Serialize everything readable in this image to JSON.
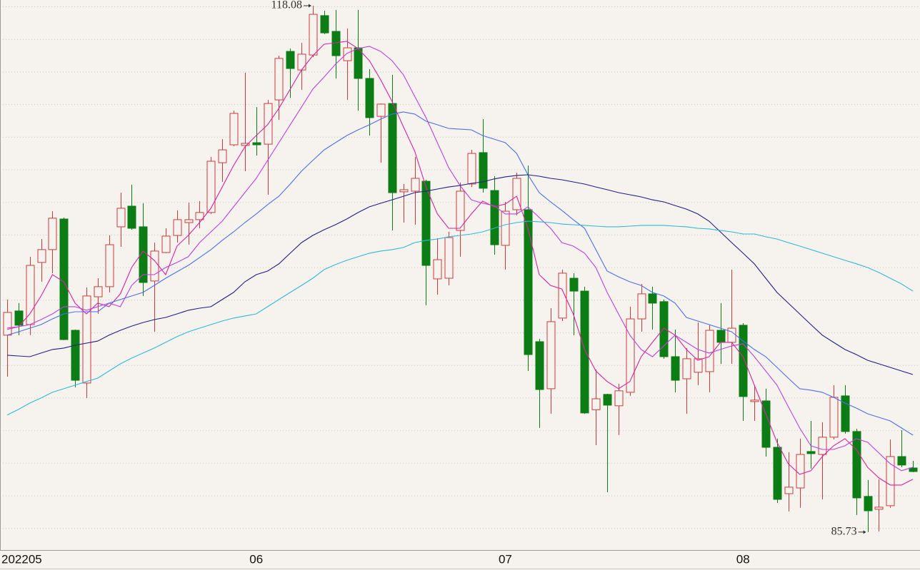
{
  "chart_data": {
    "type": "candlestick",
    "categories": [
      "202205",
      null,
      null,
      null,
      null,
      null,
      null,
      null,
      null,
      null,
      null,
      null,
      null,
      null,
      null,
      null,
      null,
      null,
      null,
      null,
      null,
      null,
      "06",
      null,
      null,
      null,
      null,
      null,
      null,
      null,
      null,
      null,
      null,
      null,
      null,
      null,
      null,
      null,
      null,
      null,
      null,
      null,
      null,
      null,
      "07",
      null,
      null,
      null,
      null,
      null,
      null,
      null,
      null,
      null,
      null,
      null,
      null,
      null,
      null,
      null,
      null,
      null,
      null,
      null,
      null,
      "08",
      null,
      null,
      null,
      null,
      null,
      null,
      null,
      null,
      null,
      null,
      null,
      null,
      null,
      null,
      null
    ],
    "open": [
      97.83,
      99.32,
      98.48,
      102.3,
      103.09,
      104.97,
      98.13,
      94.89,
      100.19,
      100.81,
      104.49,
      105.76,
      104.49,
      101.16,
      102.91,
      103.96,
      104.75,
      104.93,
      105.37,
      108.43,
      109.53,
      109.49,
      109.66,
      109.57,
      112.29,
      115.27,
      114.13,
      115.05,
      117.47,
      116.5,
      114.7,
      115.49,
      113.61,
      111.28,
      112.07,
      106.64,
      106.68,
      107.29,
      101.29,
      101.33,
      104.27,
      107.12,
      109.05,
      106.72,
      103.35,
      105.54,
      105.54,
      97.43,
      94.54,
      98.88,
      101.33,
      100.54,
      93.25,
      94.19,
      93.49,
      94.32,
      98.83,
      100.37,
      99.89,
      96.51,
      95.15,
      95.55,
      95.59,
      98.13,
      97.39,
      98.44,
      93.75,
      93.79,
      90.94,
      88.09,
      88.44,
      90.68,
      90.5,
      91.56,
      94.1,
      91.91,
      87.92,
      87.13,
      87.35,
      90.37,
      89.67
    ],
    "high": [
      100.02,
      99.8,
      102.65,
      103.74,
      105.45,
      105.06,
      98.18,
      100.76,
      101.33,
      103.96,
      106.59,
      107.08,
      105.94,
      103.52,
      104.4,
      105.5,
      105.98,
      106.07,
      108.79,
      109.88,
      111.63,
      113.96,
      111.85,
      112.29,
      115.01,
      115.45,
      115.8,
      118.08,
      117.77,
      117.82,
      116.68,
      117.82,
      114.18,
      112.07,
      113.83,
      107.12,
      108.79,
      107.38,
      103.79,
      104.18,
      107.21,
      109.22,
      111.11,
      107.6,
      106.02,
      107.82,
      108.26,
      97.61,
      99.49,
      101.86,
      101.64,
      100.81,
      95.72,
      94.23,
      94.84,
      99.58,
      100.98,
      100.81,
      100.02,
      98.18,
      97.04,
      98.61,
      98.48,
      99.8,
      101.86,
      98.57,
      94.76,
      94.54,
      91.47,
      90.64,
      91.47,
      92.56,
      92.48,
      94.76,
      94.76,
      92.08,
      88.93,
      88.97,
      91.42,
      92.0,
      90.11
    ],
    "low": [
      95.28,
      97.83,
      97.83,
      101.11,
      101.64,
      97.52,
      94.62,
      93.97,
      99.14,
      100.46,
      103.26,
      104.31,
      100.24,
      98.04,
      102.87,
      103.52,
      103.39,
      104.4,
      105.28,
      107.25,
      109.44,
      107.91,
      108.87,
      106.46,
      111.06,
      112.42,
      112.91,
      114.92,
      116.33,
      113.61,
      112.29,
      111.63,
      110.1,
      108.43,
      104.27,
      104.75,
      104.62,
      99.67,
      100.32,
      100.89,
      102.65,
      106.94,
      106.59,
      102.78,
      101.86,
      105.19,
      95.63,
      92.13,
      93.0,
      98.7,
      97.83,
      93.0,
      91.07,
      88.18,
      91.69,
      94.1,
      98.04,
      98.18,
      96.38,
      94.32,
      93.0,
      94.76,
      94.32,
      96.07,
      96.07,
      92.56,
      92.56,
      90.37,
      87.52,
      87.0,
      87.22,
      89.63,
      87.74,
      91.42,
      91.78,
      86.78,
      85.73,
      85.77,
      87.22,
      89.72,
      89.41
    ],
    "close": [
      99.23,
      98.44,
      102.12,
      103.09,
      105.02,
      97.56,
      95.06,
      100.24,
      100.81,
      103.39,
      105.63,
      104.4,
      101.07,
      103.0,
      103.92,
      104.93,
      104.93,
      105.37,
      108.52,
      109.22,
      111.46,
      109.62,
      109.53,
      112.07,
      114.84,
      114.22,
      115.1,
      117.55,
      116.41,
      115.01,
      115.49,
      113.61,
      111.2,
      112.03,
      106.59,
      106.77,
      107.47,
      102.12,
      102.47,
      103.83,
      106.68,
      109.0,
      106.86,
      103.39,
      105.45,
      107.47,
      96.64,
      94.49,
      98.66,
      101.64,
      100.54,
      93.05,
      93.92,
      93.53,
      94.41,
      98.83,
      100.37,
      99.8,
      96.51,
      95.06,
      96.38,
      96.38,
      98.13,
      97.39,
      98.26,
      94.06,
      93.84,
      90.94,
      87.74,
      88.49,
      90.5,
      90.55,
      91.56,
      94.01,
      91.91,
      87.83,
      87.04,
      87.26,
      90.37,
      89.85,
      89.45
    ],
    "up_color": "#d23a3a",
    "down_color": "#0b7d14",
    "series": [
      {
        "color": "#e0209e",
        "values": [
          98.26,
          98.35,
          99.14,
          100.24,
          101.55,
          101.11,
          99.8,
          99.14,
          99.8,
          99.58,
          100.37,
          101.99,
          103.0,
          102.43,
          101.55,
          103.31,
          103.96,
          104.75,
          105.63,
          106.94,
          108.26,
          109.4,
          110.1,
          110.76,
          111.77,
          112.95,
          114.13,
          115.01,
          115.71,
          115.8,
          115.89,
          115.45,
          114.7,
          113.52,
          112.2,
          110.63,
          109.14,
          106.94,
          105.28,
          104.4,
          104.4,
          105.28,
          106.07,
          105.72,
          105.89,
          106.37,
          104.4,
          101.55,
          100.89,
          100.67,
          99.14,
          96.95,
          95.63,
          94.98,
          94.54,
          94.98,
          96.51,
          97.39,
          98.26,
          97.83,
          96.95,
          96.29,
          96.51,
          97.39,
          97.39,
          96.51,
          94.76,
          93.0,
          91.25,
          89.93,
          89.28,
          89.5,
          90.37,
          91.03,
          91.47,
          90.81,
          89.71,
          89.06,
          88.62,
          88.62,
          88.97
        ]
      },
      {
        "color": "#c040e0",
        "values": [
          98.18,
          98.35,
          98.48,
          98.79,
          99.14,
          99.58,
          99.58,
          99.36,
          99.58,
          99.8,
          99.58,
          100.89,
          101.55,
          101.55,
          101.99,
          102.3,
          102.65,
          103.52,
          104.18,
          104.84,
          105.72,
          106.59,
          107.47,
          108.57,
          109.66,
          110.76,
          111.85,
          112.95,
          113.7,
          114.48,
          115.14,
          115.45,
          115.58,
          115.27,
          114.7,
          113.83,
          112.51,
          111.2,
          109.66,
          108.13,
          107.03,
          106.15,
          105.94,
          105.8,
          105.28,
          105.28,
          105.72,
          105.06,
          104.4,
          103.52,
          103.31,
          102.87,
          101.99,
          100.46,
          99.14,
          97.83,
          96.95,
          96.51,
          97.17,
          97.83,
          97.39,
          96.95,
          96.73,
          96.95,
          97.17,
          97.3,
          96.51,
          95.63,
          94.76,
          93.44,
          92.13,
          91.03,
          90.81,
          90.81,
          91.03,
          91.47,
          91.25,
          90.59,
          89.93,
          89.5,
          89.71
        ]
      },
      {
        "color": "#4a6ef0",
        "values": [
          97.83,
          98.04,
          98.26,
          98.48,
          98.83,
          99.14,
          99.27,
          99.27,
          99.27,
          99.8,
          100.02,
          100.24,
          100.46,
          100.89,
          101.33,
          101.73,
          102.12,
          102.6,
          103.09,
          103.66,
          104.18,
          104.75,
          105.28,
          105.85,
          106.37,
          107.12,
          107.91,
          108.57,
          109.22,
          109.66,
          110.1,
          110.45,
          110.76,
          111.11,
          111.42,
          111.55,
          111.42,
          110.98,
          110.76,
          110.54,
          110.49,
          110.45,
          110.1,
          109.88,
          109.66,
          109.0,
          107.69,
          106.59,
          106.02,
          105.5,
          104.93,
          104.4,
          103.09,
          101.77,
          101.42,
          101.11,
          100.89,
          100.46,
          100.24,
          99.8,
          98.92,
          98.7,
          98.48,
          98.26,
          98.04,
          97.47,
          96.95,
          96.51,
          95.85,
          95.19,
          94.54,
          94.45,
          94.32,
          94.01,
          93.66,
          93.35,
          93.0,
          92.78,
          92.56,
          92.13,
          91.69
        ]
      },
      {
        "color": "#1e1e8c",
        "values": [
          96.6,
          96.55,
          96.51,
          96.73,
          96.95,
          97.04,
          97.21,
          97.34,
          97.47,
          97.83,
          98.13,
          98.39,
          98.61,
          98.79,
          98.92,
          99.14,
          99.36,
          99.49,
          99.58,
          100.02,
          100.46,
          101.11,
          101.55,
          101.77,
          102.21,
          102.87,
          103.52,
          103.96,
          104.31,
          104.62,
          104.97,
          105.37,
          105.72,
          105.94,
          106.15,
          106.37,
          106.59,
          106.68,
          106.81,
          106.94,
          107.03,
          107.16,
          107.25,
          107.43,
          107.56,
          107.65,
          107.69,
          107.6,
          107.47,
          107.38,
          107.25,
          107.12,
          106.94,
          106.77,
          106.59,
          106.46,
          106.33,
          106.15,
          106.02,
          105.8,
          105.58,
          105.28,
          104.84,
          104.18,
          103.52,
          102.87,
          102.21,
          101.33,
          100.46,
          99.8,
          99.14,
          98.48,
          97.83,
          97.39,
          96.95,
          96.64,
          96.29,
          96.07,
          95.85,
          95.63,
          95.41
        ]
      },
      {
        "color": "#30b8d8",
        "values": [
          92.92,
          93.27,
          93.66,
          93.97,
          94.32,
          94.54,
          94.76,
          94.98,
          95.19,
          95.63,
          96.07,
          96.42,
          96.73,
          97.04,
          97.39,
          97.74,
          98.04,
          98.26,
          98.48,
          98.7,
          98.88,
          99.01,
          99.14,
          99.58,
          100.02,
          100.46,
          100.89,
          101.33,
          101.86,
          102.17,
          102.43,
          102.65,
          102.87,
          103.0,
          103.09,
          103.22,
          103.52,
          103.66,
          103.74,
          103.88,
          103.96,
          104.05,
          104.18,
          104.4,
          104.62,
          104.75,
          104.84,
          104.8,
          104.75,
          104.66,
          104.62,
          104.58,
          104.53,
          104.49,
          104.49,
          104.53,
          104.58,
          104.58,
          104.58,
          104.53,
          104.49,
          104.4,
          104.36,
          104.27,
          104.18,
          104.05,
          104.05,
          103.88,
          103.74,
          103.52,
          103.31,
          103.09,
          102.87,
          102.65,
          102.43,
          102.22,
          101.99,
          101.68,
          101.33,
          100.98,
          100.54
        ]
      }
    ],
    "ylim": [
      84.67,
      118.43
    ],
    "grid": true
  }
}
